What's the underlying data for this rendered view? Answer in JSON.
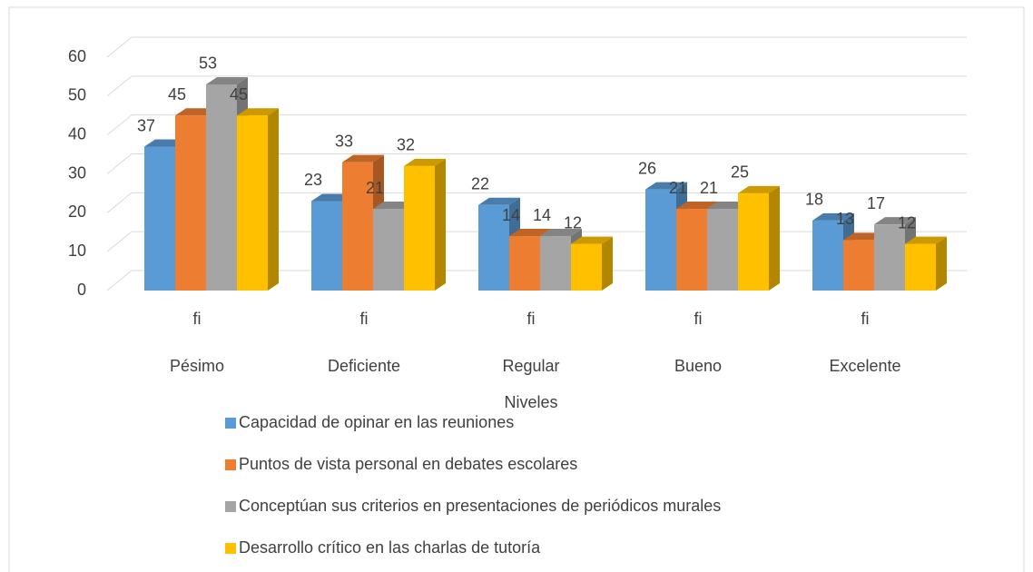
{
  "chart_data": {
    "type": "bar3d",
    "categories": [
      "fi",
      "fi",
      "fi",
      "fi",
      "fi"
    ],
    "category_groups": [
      "Pésimo",
      "Deficiente",
      "Regular",
      "Bueno",
      "Excelente"
    ],
    "x_label": "Niveles",
    "series": [
      {
        "name": "Capacidad de opinar en las reuniones",
        "color": "#5b9bd5",
        "values": [
          37,
          23,
          22,
          26,
          18
        ]
      },
      {
        "name": "Puntos de vista personal en debates escolares",
        "color": "#ed7d31",
        "values": [
          45,
          33,
          14,
          21,
          13
        ]
      },
      {
        "name": "Conceptúan sus criterios en presentaciones de periódicos murales",
        "color": "#a5a5a5",
        "values": [
          53,
          21,
          14,
          21,
          17
        ]
      },
      {
        "name": "Desarrollo crítico en las charlas de tutoría",
        "color": "#ffc000",
        "values": [
          45,
          32,
          12,
          25,
          12
        ]
      }
    ],
    "ylim": [
      0,
      60
    ],
    "yticks": [
      0,
      10,
      20,
      30,
      40,
      50,
      60
    ],
    "grid": true,
    "legend": "bottom"
  }
}
